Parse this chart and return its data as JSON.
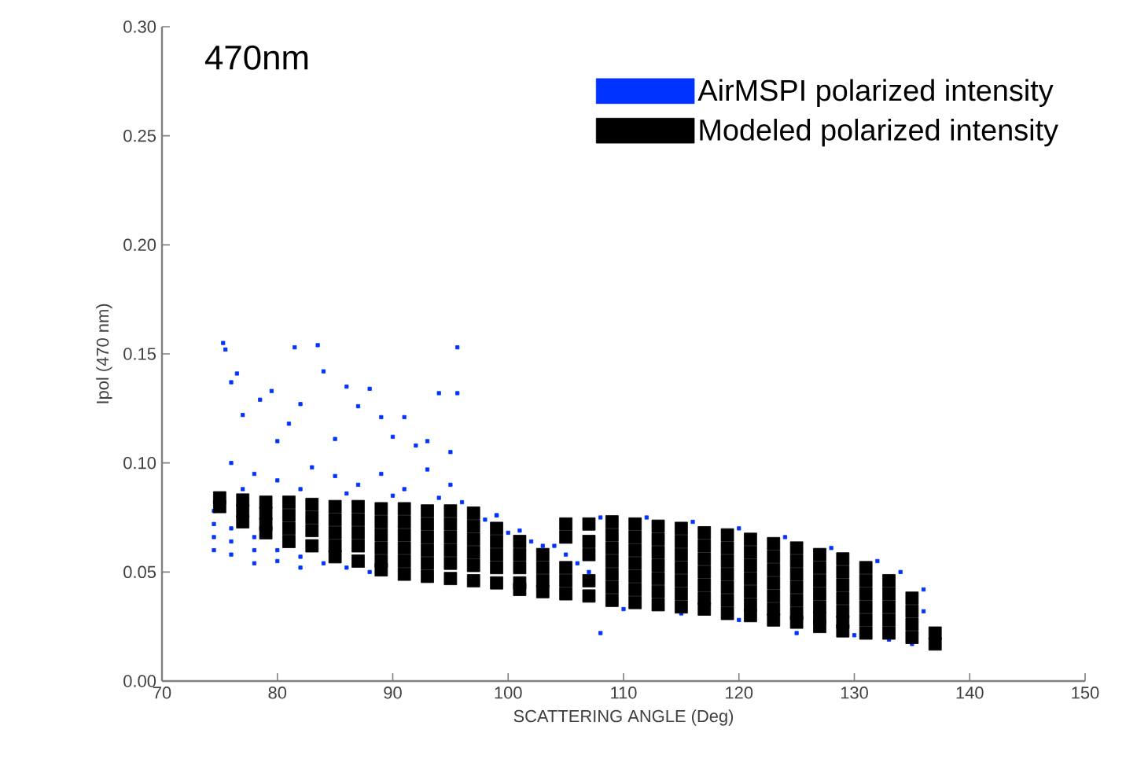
{
  "chart_data": {
    "type": "scatter",
    "xlabel": "SCATTERING ANGLE (Deg)",
    "ylabel": "Ipol (470 nm)",
    "annotations": [
      "470nm"
    ],
    "xlim": [
      70,
      150
    ],
    "xticks": [
      70,
      80,
      90,
      100,
      110,
      120,
      130,
      140,
      150
    ],
    "ylim": [
      0,
      0.3
    ],
    "yticks": [
      {
        "value": 0,
        "label": "0.00"
      },
      {
        "value": 0.05,
        "label": "0.05"
      },
      {
        "value": 0.1,
        "label": "0.10"
      },
      {
        "value": 0.15,
        "label": "0.15"
      },
      {
        "value": 0.2,
        "label": "0.20"
      },
      {
        "value": 0.25,
        "label": "0.25"
      },
      {
        "value": 0.3,
        "label": "0.30"
      }
    ],
    "legend": "top right",
    "marker": "square",
    "grid": false,
    "series": [
      {
        "name": "AirMSPI polarized intensity",
        "color": "#0033ff",
        "x": [
          74.5,
          74.5,
          74.5,
          74.5,
          76,
          76,
          76,
          78,
          78,
          78,
          80,
          80,
          82,
          82,
          84,
          86,
          88,
          98,
          99,
          100,
          101,
          102,
          103,
          104,
          105,
          106,
          107,
          99,
          108,
          112,
          116,
          120,
          124,
          128,
          132,
          134,
          136,
          136,
          110,
          115,
          120,
          125,
          130,
          133,
          135,
          108,
          75.3,
          75.5,
          76,
          76.5,
          77,
          78.5,
          79.5,
          80,
          81,
          82,
          81.5,
          83.5,
          84,
          85,
          86,
          87,
          88,
          89,
          90,
          91,
          92,
          93,
          94,
          95,
          95.6,
          95.6,
          76,
          78,
          80,
          83,
          85,
          87,
          89,
          91,
          93,
          95,
          77,
          82,
          86,
          90,
          94,
          96
        ],
        "values": [
          0.078,
          0.072,
          0.066,
          0.06,
          0.07,
          0.064,
          0.058,
          0.066,
          0.06,
          0.054,
          0.06,
          0.055,
          0.057,
          0.052,
          0.054,
          0.052,
          0.05,
          0.074,
          0.076,
          0.068,
          0.069,
          0.064,
          0.062,
          0.062,
          0.058,
          0.054,
          0.05,
          0.076,
          0.075,
          0.075,
          0.073,
          0.07,
          0.066,
          0.061,
          0.055,
          0.05,
          0.042,
          0.032,
          0.033,
          0.031,
          0.028,
          0.022,
          0.021,
          0.019,
          0.017,
          0.022,
          0.155,
          0.152,
          0.137,
          0.141,
          0.122,
          0.129,
          0.133,
          0.11,
          0.118,
          0.127,
          0.153,
          0.154,
          0.142,
          0.111,
          0.135,
          0.126,
          0.134,
          0.121,
          0.112,
          0.121,
          0.108,
          0.11,
          0.132,
          0.105,
          0.153,
          0.132,
          0.1,
          0.095,
          0.092,
          0.098,
          0.094,
          0.09,
          0.095,
          0.088,
          0.097,
          0.09,
          0.088,
          0.088,
          0.086,
          0.085,
          0.084,
          0.082
        ]
      },
      {
        "name": "Modeled polarized intensity",
        "color": "#000000",
        "x": [
          75,
          75,
          77,
          77,
          77,
          79,
          79,
          79,
          79,
          81,
          81,
          81,
          81,
          83,
          83,
          83,
          83,
          85,
          85,
          85,
          85,
          85,
          87,
          87,
          87,
          87,
          87,
          89,
          89,
          89,
          89,
          89,
          89,
          91,
          91,
          91,
          91,
          91,
          91,
          93,
          93,
          93,
          93,
          93,
          93,
          95,
          95,
          95,
          95,
          95,
          95,
          97,
          97,
          97,
          97,
          97,
          97,
          99,
          99,
          99,
          99,
          99,
          101,
          101,
          101,
          101,
          101,
          103,
          103,
          103,
          103,
          105,
          105,
          105,
          105,
          105,
          107,
          107,
          107,
          107,
          107,
          109,
          109,
          109,
          109,
          109,
          109,
          109,
          111,
          111,
          111,
          111,
          111,
          111,
          111,
          113,
          113,
          113,
          113,
          113,
          113,
          113,
          115,
          115,
          115,
          115,
          115,
          115,
          115,
          117,
          117,
          117,
          117,
          117,
          117,
          117,
          119,
          119,
          119,
          119,
          119,
          119,
          119,
          121,
          121,
          121,
          121,
          121,
          121,
          121,
          123,
          123,
          123,
          123,
          123,
          123,
          123,
          125,
          125,
          125,
          125,
          125,
          125,
          125,
          127,
          127,
          127,
          127,
          127,
          127,
          127,
          129,
          129,
          129,
          129,
          129,
          129,
          129,
          131,
          131,
          131,
          131,
          131,
          131,
          133,
          133,
          133,
          133,
          133,
          135,
          135,
          135,
          135,
          137,
          137
        ],
        "values": [
          0.084,
          0.08,
          0.083,
          0.078,
          0.073,
          0.082,
          0.077,
          0.072,
          0.068,
          0.082,
          0.076,
          0.07,
          0.064,
          0.081,
          0.075,
          0.069,
          0.062,
          0.08,
          0.074,
          0.068,
          0.062,
          0.057,
          0.08,
          0.074,
          0.068,
          0.062,
          0.055,
          0.079,
          0.073,
          0.067,
          0.061,
          0.055,
          0.051,
          0.079,
          0.073,
          0.067,
          0.061,
          0.055,
          0.049,
          0.078,
          0.072,
          0.066,
          0.06,
          0.054,
          0.048,
          0.078,
          0.072,
          0.066,
          0.06,
          0.054,
          0.047,
          0.077,
          0.071,
          0.065,
          0.059,
          0.053,
          0.046,
          0.07,
          0.064,
          0.058,
          0.052,
          0.045,
          0.064,
          0.058,
          0.052,
          0.045,
          0.042,
          0.058,
          0.052,
          0.046,
          0.041,
          0.072,
          0.066,
          0.052,
          0.046,
          0.04,
          0.072,
          0.064,
          0.058,
          0.046,
          0.039,
          0.073,
          0.067,
          0.061,
          0.055,
          0.049,
          0.043,
          0.037,
          0.072,
          0.066,
          0.06,
          0.054,
          0.048,
          0.042,
          0.036,
          0.071,
          0.065,
          0.059,
          0.053,
          0.047,
          0.041,
          0.035,
          0.07,
          0.064,
          0.058,
          0.052,
          0.046,
          0.04,
          0.034,
          0.068,
          0.062,
          0.056,
          0.05,
          0.044,
          0.038,
          0.033,
          0.067,
          0.061,
          0.055,
          0.049,
          0.043,
          0.037,
          0.031,
          0.065,
          0.059,
          0.053,
          0.047,
          0.041,
          0.035,
          0.03,
          0.063,
          0.057,
          0.051,
          0.045,
          0.039,
          0.033,
          0.028,
          0.061,
          0.055,
          0.049,
          0.043,
          0.037,
          0.031,
          0.027,
          0.058,
          0.052,
          0.046,
          0.04,
          0.034,
          0.029,
          0.025,
          0.056,
          0.05,
          0.044,
          0.038,
          0.032,
          0.027,
          0.023,
          0.052,
          0.046,
          0.04,
          0.034,
          0.028,
          0.022,
          0.046,
          0.04,
          0.034,
          0.028,
          0.022,
          0.038,
          0.032,
          0.026,
          0.02,
          0.022,
          0.017
        ]
      }
    ]
  }
}
